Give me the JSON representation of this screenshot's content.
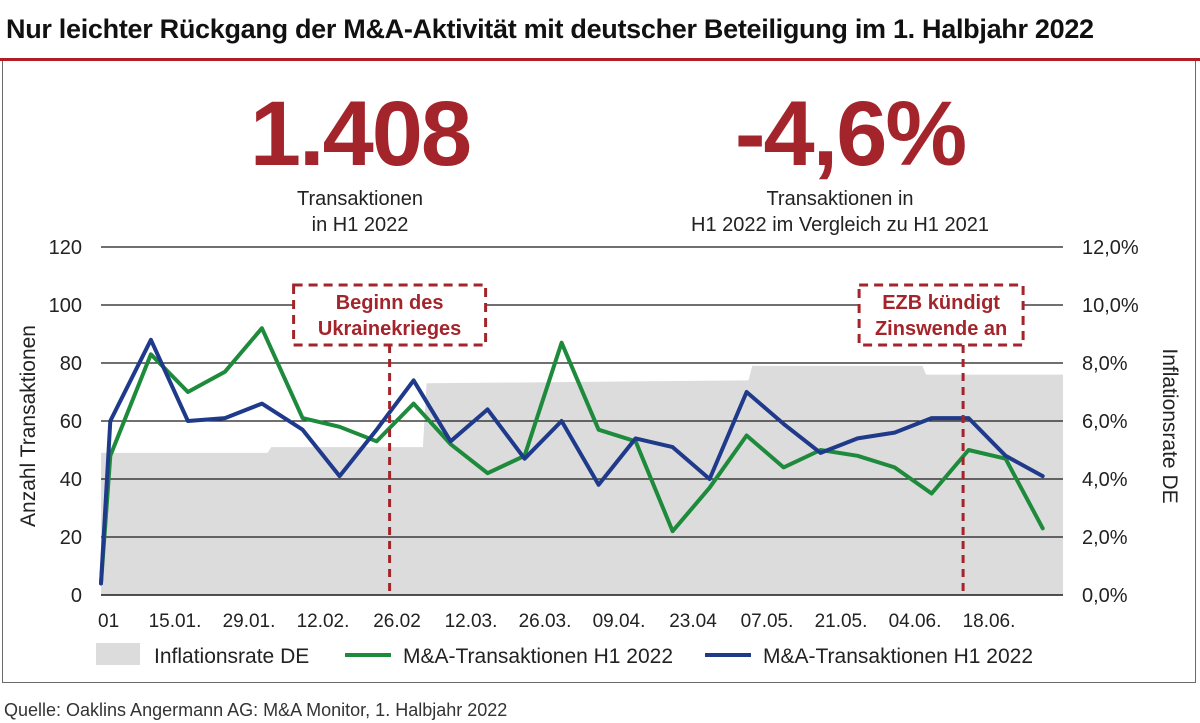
{
  "title": "Nur leichter Rückgang der M&A-Aktivität mit deutscher Beteiligung im 1. Halbjahr 2022",
  "kpis": [
    {
      "value": "1.408",
      "label_line1": "Transaktionen",
      "label_line2": "in H1 2022"
    },
    {
      "value": "-4,6%",
      "label_line1": "Transaktionen in",
      "label_line2": "H1 2022 im Vergleich zu H1 2021"
    }
  ],
  "source": "Quelle: Oaklins Angermann AG: M&A Monitor, 1. Halbjahr 2022",
  "colors": {
    "accent_red": "#a3252b",
    "green_series": "#1e8a3c",
    "blue_series": "#1f3a8a",
    "inflation_fill": "#dcdcdc"
  },
  "chart_data": {
    "type": "line",
    "ylabel": "Anzahl Transaktionen",
    "y2label": "Inflationsrate DE",
    "ylim": [
      0,
      120
    ],
    "y2lim": [
      0,
      12
    ],
    "yticks": [
      "0",
      "20",
      "40",
      "60",
      "80",
      "100",
      "120"
    ],
    "y2ticks": [
      "0,0%",
      "2,0%",
      "4,0%",
      "6,0%",
      "8,0%",
      "10,0%",
      "12,0%"
    ],
    "xlim": [
      0,
      26
    ],
    "xticks": [
      {
        "x": 0,
        "label": "01"
      },
      {
        "x": 2,
        "label": "15.01."
      },
      {
        "x": 4,
        "label": "29.01."
      },
      {
        "x": 6,
        "label": "12.02."
      },
      {
        "x": 8,
        "label": "26.02"
      },
      {
        "x": 10,
        "label": "12.03."
      },
      {
        "x": 12,
        "label": "26.03."
      },
      {
        "x": 14,
        "label": "09.04."
      },
      {
        "x": 16,
        "label": "23.04"
      },
      {
        "x": 18,
        "label": "07.05."
      },
      {
        "x": 20,
        "label": "21.05."
      },
      {
        "x": 22,
        "label": "04.06."
      },
      {
        "x": 24,
        "label": "18.06."
      }
    ],
    "grid": true,
    "legend_position": "bottom",
    "series": [
      {
        "name": "Inflationsrate DE",
        "type": "area",
        "axis": "right",
        "color": "#dcdcdc",
        "points": [
          [
            0,
            4.9
          ],
          [
            4.5,
            4.9
          ],
          [
            4.6,
            5.1
          ],
          [
            8.7,
            5.1
          ],
          [
            8.8,
            7.3
          ],
          [
            17.5,
            7.4
          ],
          [
            17.6,
            7.9
          ],
          [
            22.2,
            7.9
          ],
          [
            22.3,
            7.6
          ],
          [
            26,
            7.6
          ]
        ]
      },
      {
        "name": "M&A-Transaktionen H1 2022",
        "type": "line",
        "axis": "left",
        "color": "#1e8a3c",
        "points": [
          [
            0,
            4
          ],
          [
            0.25,
            48
          ],
          [
            1.35,
            83
          ],
          [
            2.35,
            70
          ],
          [
            3.35,
            77
          ],
          [
            4.35,
            92
          ],
          [
            5.45,
            61
          ],
          [
            6.45,
            58
          ],
          [
            7.45,
            53
          ],
          [
            8.45,
            66
          ],
          [
            9.45,
            52
          ],
          [
            10.45,
            42
          ],
          [
            11.45,
            48
          ],
          [
            12.45,
            87
          ],
          [
            13.45,
            57
          ],
          [
            14.45,
            53
          ],
          [
            15.45,
            22
          ],
          [
            16.45,
            37
          ],
          [
            17.45,
            55
          ],
          [
            18.45,
            44
          ],
          [
            19.45,
            50
          ],
          [
            20.45,
            48
          ],
          [
            21.45,
            44
          ],
          [
            22.45,
            35
          ],
          [
            23.45,
            50
          ],
          [
            24.45,
            47
          ],
          [
            25.45,
            23
          ]
        ]
      },
      {
        "name": "M&A-Transaktionen H1 2022",
        "type": "line",
        "axis": "left",
        "color": "#1f3a8a",
        "points": [
          [
            0,
            4
          ],
          [
            0.25,
            60
          ],
          [
            1.35,
            88
          ],
          [
            2.35,
            60
          ],
          [
            3.35,
            61
          ],
          [
            4.35,
            66
          ],
          [
            5.45,
            57
          ],
          [
            6.45,
            41
          ],
          [
            7.45,
            57
          ],
          [
            8.45,
            74
          ],
          [
            9.45,
            53
          ],
          [
            10.45,
            64
          ],
          [
            11.45,
            47
          ],
          [
            12.45,
            60
          ],
          [
            13.45,
            38
          ],
          [
            14.45,
            54
          ],
          [
            15.45,
            51
          ],
          [
            16.45,
            40
          ],
          [
            17.45,
            70
          ],
          [
            18.45,
            59
          ],
          [
            19.45,
            49
          ],
          [
            20.45,
            54
          ],
          [
            21.45,
            56
          ],
          [
            22.45,
            61
          ],
          [
            23.45,
            61
          ],
          [
            24.45,
            48
          ],
          [
            25.45,
            41
          ]
        ]
      }
    ],
    "annotations": [
      {
        "line1": "Beginn des",
        "line2": "Ukrainekrieges",
        "x": 7.8
      },
      {
        "line1": "EZB kündigt",
        "line2": "Zinswende an",
        "x": 23.3
      }
    ]
  }
}
